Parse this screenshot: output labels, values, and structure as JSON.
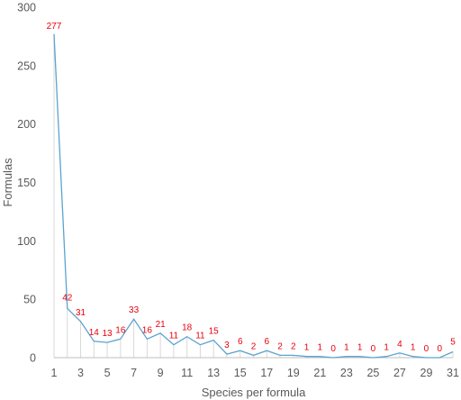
{
  "chart_data": {
    "type": "line",
    "title": "",
    "xlabel": "Species per formula",
    "ylabel": "Formulas",
    "x": [
      1,
      2,
      3,
      4,
      5,
      6,
      7,
      8,
      9,
      10,
      11,
      12,
      13,
      14,
      15,
      16,
      17,
      18,
      19,
      20,
      21,
      22,
      23,
      24,
      25,
      26,
      27,
      28,
      29,
      30,
      31
    ],
    "x_tick_labels": [
      "1",
      "3",
      "5",
      "7",
      "9",
      "11",
      "13",
      "15",
      "17",
      "19",
      "21",
      "23",
      "25",
      "27",
      "29",
      "31"
    ],
    "y_tick_labels": [
      "0",
      "50",
      "100",
      "150",
      "200",
      "250",
      "300"
    ],
    "ylim": [
      0,
      300
    ],
    "xlim": [
      1,
      31
    ],
    "grid": false,
    "drop_lines": true,
    "series": [
      {
        "values": [
          277,
          42,
          31,
          14,
          13,
          16,
          33,
          16,
          21,
          11,
          18,
          11,
          15,
          3,
          6,
          2,
          6,
          2,
          2,
          1,
          1,
          0,
          1,
          1,
          0,
          1,
          4,
          1,
          0,
          0,
          5
        ],
        "data_labels": [
          "277",
          "42",
          "31",
          "14",
          "13",
          "16",
          "33",
          "16",
          "21",
          "11",
          "18",
          "11",
          "15",
          "3",
          "6",
          "2",
          "6",
          "2",
          "2",
          "1",
          "1",
          "0",
          "1",
          "1",
          "0",
          "1",
          "4",
          "1",
          "0",
          "0",
          "5"
        ]
      }
    ],
    "colors": {
      "line": "#5ba3d0",
      "drop_line": "#d9d9d9",
      "data_label": "#e8000b",
      "axis": "#bfbfbf",
      "text": "#595959"
    }
  }
}
